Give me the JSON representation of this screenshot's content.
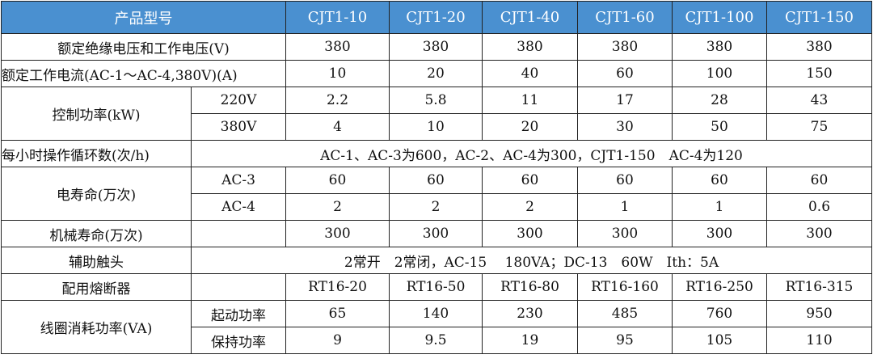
{
  "header": {
    "label": "产品型号",
    "models": [
      "CJT1-10",
      "CJT1-20",
      "CJT1-40",
      "CJT1-60",
      "CJT1-100",
      "CJT1-150"
    ]
  },
  "colors": {
    "header_bg": "#4a90d0",
    "header_text": "#ffffff"
  },
  "rows": {
    "insulation": {
      "label": "额定绝缘电压和工作电压(V)",
      "values": [
        "380",
        "380",
        "380",
        "380",
        "380",
        "380"
      ]
    },
    "current": {
      "label": "额定工作电流(AC-1～AC-4,380V)(A)",
      "values": [
        "10",
        "20",
        "40",
        "60",
        "100",
        "150"
      ]
    },
    "power": {
      "label": "控制功率(kW)",
      "sub": [
        {
          "label": "220V",
          "values": [
            "2.2",
            "5.8",
            "11",
            "17",
            "28",
            "43"
          ]
        },
        {
          "label": "380V",
          "values": [
            "4",
            "10",
            "20",
            "30",
            "50",
            "75"
          ]
        }
      ]
    },
    "ops": {
      "label": "每小时操作循环数(次/h)",
      "text": "AC-1、AC-3为600，AC-2、AC-4为300，CJT1-150　AC-4为120"
    },
    "elec_life": {
      "label": "电寿命(万次)",
      "sub": [
        {
          "label": "AC-3",
          "values": [
            "60",
            "60",
            "60",
            "60",
            "60",
            "60"
          ]
        },
        {
          "label": "AC-4",
          "values": [
            "2",
            "2",
            "2",
            "1",
            "1",
            "0.6"
          ]
        }
      ]
    },
    "mech_life": {
      "label": "机械寿命(万次)",
      "values": [
        "300",
        "300",
        "300",
        "300",
        "300",
        "300"
      ]
    },
    "aux": {
      "label": "辅助触头",
      "text": "2常开　2常闭，AC-15　 180VA；DC-13　60W　Ith：5A"
    },
    "fuse": {
      "label": "配用熔断器",
      "values": [
        "RT16-20",
        "RT16-50",
        "RT16-80",
        "RT16-160",
        "RT16-250",
        "RT16-315"
      ]
    },
    "coil": {
      "label": "线圈消耗功率(VA)",
      "sub": [
        {
          "label": "起动功率",
          "values": [
            "65",
            "140",
            "230",
            "485",
            "760",
            "950"
          ]
        },
        {
          "label": "保持功率",
          "values": [
            "9",
            "9.5",
            "19",
            "95",
            "105",
            "110"
          ]
        }
      ]
    }
  }
}
